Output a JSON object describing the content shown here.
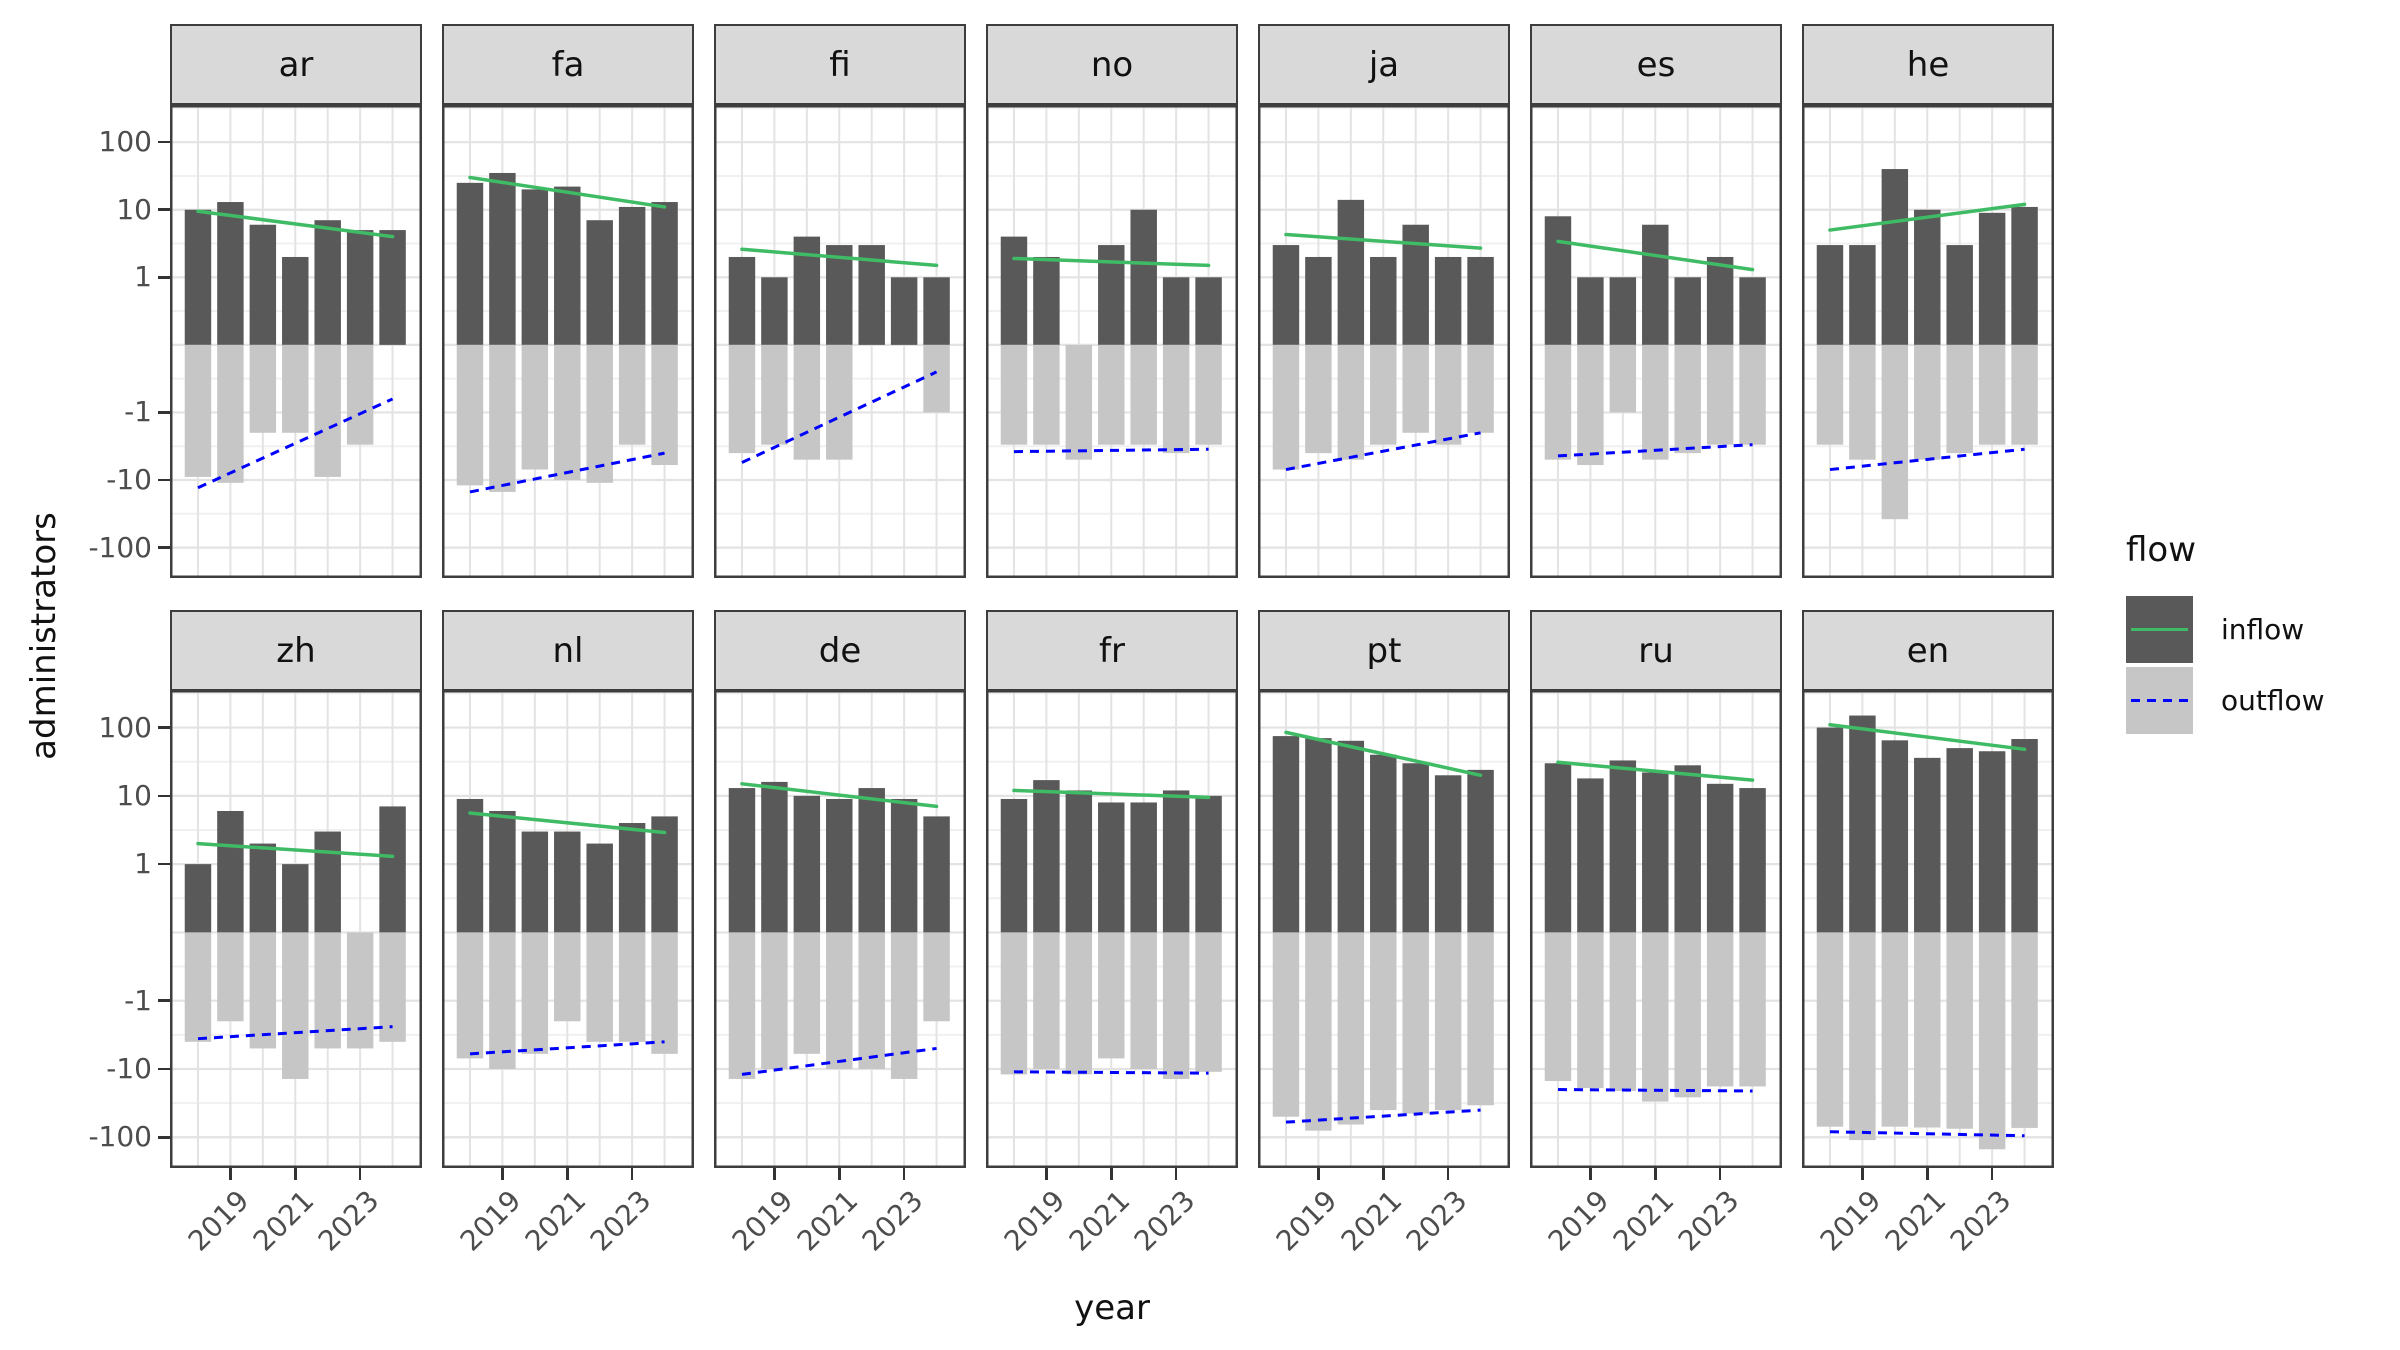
{
  "axes": {
    "x_title": "year",
    "y_title": "administrators",
    "x_tick_labels": [
      "2019",
      "2021",
      "2023"
    ],
    "y_tick_labels": [
      "100",
      "10",
      "1",
      "-1",
      "-10",
      "-100"
    ]
  },
  "legend": {
    "title": "flow",
    "items": [
      {
        "label": "inflow",
        "swatch_color": "#595959",
        "line_color": "#3ebb64",
        "line_style": "solid"
      },
      {
        "label": "outflow",
        "swatch_color": "#c6c6c6",
        "line_color": "#0000ff",
        "line_style": "dashed"
      }
    ]
  },
  "colors": {
    "inflow_bar": "#595959",
    "outflow_bar": "#c6c6c6",
    "inflow_trend": "#3ebb64",
    "outflow_trend": "#0000ff",
    "panel_border": "#3d3d3d",
    "grid_major": "#e3e3e3",
    "grid_minor": "#f0f0f0",
    "strip_bg": "#d9d9d9",
    "tick_text": "#4d4d4d"
  },
  "chart_data": {
    "type": "bar",
    "title": "",
    "xlabel": "year",
    "ylabel": "administrators",
    "y_scale": "pseudo-log",
    "y_ticks": [
      100,
      10,
      1,
      -1,
      -10,
      -100
    ],
    "x": [
      2018,
      2019,
      2020,
      2021,
      2022,
      2023,
      2024
    ],
    "x_ticks": [
      2019,
      2021,
      2023
    ],
    "facet_variable": "wiki language",
    "facet_rows": [
      [
        "ar",
        "fa",
        "fi",
        "no",
        "ja",
        "es",
        "he"
      ],
      [
        "zh",
        "nl",
        "de",
        "fr",
        "pt",
        "ru",
        "en"
      ]
    ],
    "legend_position": "right",
    "grid": true,
    "panels": {
      "ar": {
        "inflow": [
          10,
          13,
          6,
          2,
          7,
          5,
          5
        ],
        "outflow": [
          -9,
          -11,
          -2,
          -2,
          -9,
          -3,
          0
        ],
        "inflow_trend": [
          9.5,
          4
        ],
        "outflow_trend": [
          -13,
          -0.8
        ]
      },
      "fa": {
        "inflow": [
          25,
          35,
          20,
          22,
          7,
          11,
          13
        ],
        "outflow": [
          -12,
          -15,
          -7,
          -10,
          -11,
          -3,
          -6
        ],
        "inflow_trend": [
          30,
          11
        ],
        "outflow_trend": [
          -15,
          -4
        ]
      },
      "fi": {
        "inflow": [
          2,
          1,
          4,
          3,
          3,
          1,
          1
        ],
        "outflow": [
          -4,
          -3,
          -5,
          -5,
          0,
          0,
          -1
        ],
        "inflow_trend": [
          2.6,
          1.5
        ],
        "outflow_trend": [
          -5.5,
          -0.4
        ]
      },
      "no": {
        "inflow": [
          4,
          2,
          0,
          3,
          10,
          1,
          1
        ],
        "outflow": [
          -3,
          -3,
          -5,
          -3,
          -3,
          -4,
          -3
        ],
        "inflow_trend": [
          1.9,
          1.5
        ],
        "outflow_trend": [
          -3.8,
          -3.5
        ]
      },
      "ja": {
        "inflow": [
          3,
          2,
          14,
          2,
          6,
          2,
          2
        ],
        "outflow": [
          -7,
          -4,
          -5,
          -3,
          -2,
          -3,
          -2
        ],
        "inflow_trend": [
          4.3,
          2.7
        ],
        "outflow_trend": [
          -7,
          -2
        ]
      },
      "es": {
        "inflow": [
          8,
          1,
          1,
          6,
          1,
          2,
          1
        ],
        "outflow": [
          -5,
          -6,
          -1,
          -5,
          -4,
          -3,
          -3
        ],
        "inflow_trend": [
          3.4,
          1.3
        ],
        "outflow_trend": [
          -4.4,
          -3
        ]
      },
      "he": {
        "inflow": [
          3,
          3,
          40,
          10,
          3,
          9,
          11
        ],
        "outflow": [
          -3,
          -5,
          -38,
          -5,
          -4,
          -3,
          -3
        ],
        "inflow_trend": [
          5,
          12
        ],
        "outflow_trend": [
          -7,
          -3.5
        ]
      },
      "zh": {
        "inflow": [
          1,
          6,
          2,
          1,
          3,
          0,
          7
        ],
        "outflow": [
          -4,
          -2,
          -5,
          -14,
          -5,
          -5,
          -4
        ],
        "inflow_trend": [
          2,
          1.3
        ],
        "outflow_trend": [
          -3.6,
          -2.4
        ]
      },
      "nl": {
        "inflow": [
          9,
          6,
          3,
          3,
          2,
          4,
          5
        ],
        "outflow": [
          -7,
          -10,
          -6,
          -2,
          -4,
          -4,
          -6
        ],
        "inflow_trend": [
          5.6,
          2.9
        ],
        "outflow_trend": [
          -6,
          -4
        ]
      },
      "de": {
        "inflow": [
          13,
          16,
          10,
          9,
          13,
          9,
          5
        ],
        "outflow": [
          -14,
          -10,
          -6,
          -10,
          -10,
          -14,
          -2
        ],
        "inflow_trend": [
          15,
          7
        ],
        "outflow_trend": [
          -12,
          -5
        ]
      },
      "fr": {
        "inflow": [
          9,
          17,
          12,
          8,
          8,
          12,
          10
        ],
        "outflow": [
          -12,
          -10,
          -12,
          -7,
          -10,
          -14,
          -11
        ],
        "inflow_trend": [
          12,
          9.5
        ],
        "outflow_trend": [
          -11,
          -11.5
        ]
      },
      "pt": {
        "inflow": [
          75,
          70,
          64,
          40,
          30,
          20,
          24
        ],
        "outflow": [
          -50,
          -80,
          -65,
          -40,
          -45,
          -40,
          -34
        ],
        "inflow_trend": [
          85,
          20
        ],
        "outflow_trend": [
          -60,
          -40
        ]
      },
      "ru": {
        "inflow": [
          30,
          18,
          33,
          22,
          28,
          15,
          13
        ],
        "outflow": [
          -15,
          -19,
          -21,
          -30,
          -26,
          -18,
          -18
        ],
        "inflow_trend": [
          31,
          17
        ],
        "outflow_trend": [
          -20,
          -21
        ]
      },
      "en": {
        "inflow": [
          100,
          150,
          65,
          36,
          50,
          45,
          68
        ],
        "outflow": [
          -70,
          -110,
          -70,
          -72,
          -75,
          -150,
          -73
        ],
        "inflow_trend": [
          110,
          48
        ],
        "outflow_trend": [
          -83,
          -95
        ]
      }
    }
  }
}
